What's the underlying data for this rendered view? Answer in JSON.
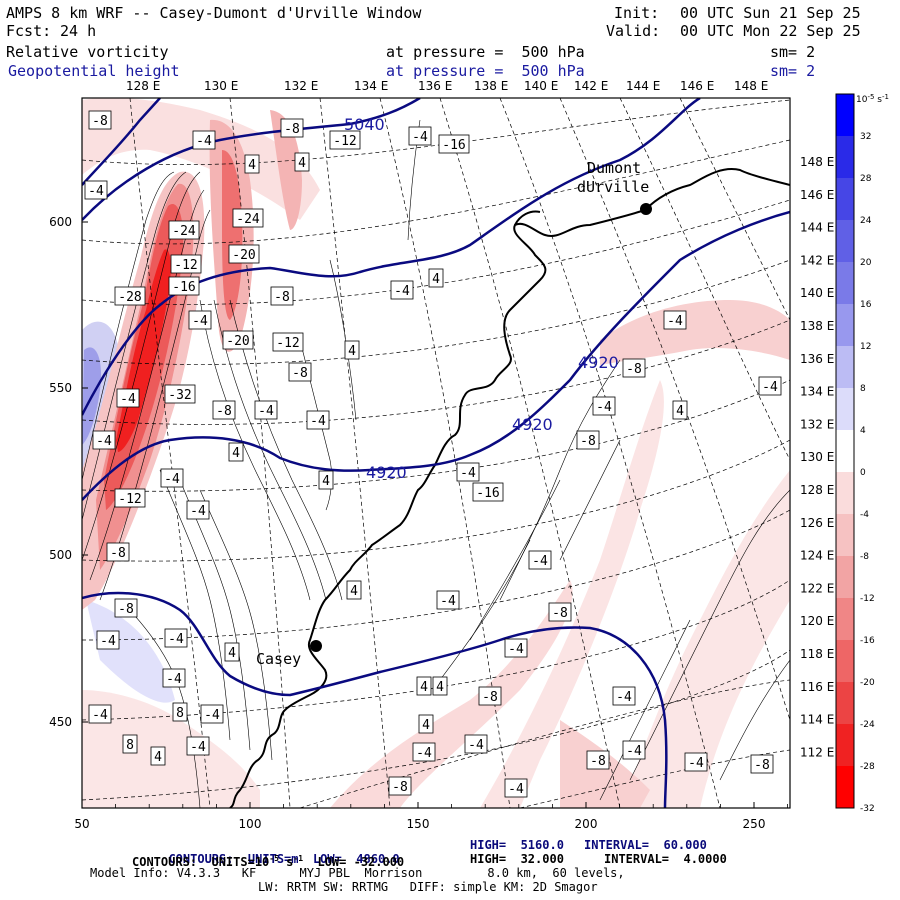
{
  "header": {
    "model_line": "AMPS 8 km WRF -- Casey-Dumont d'Urville Window",
    "fcst_label": "Fcst:",
    "fcst_value": "24 h",
    "init_label": "Init:",
    "init_value": "00 UTC Sun 21 Sep 25",
    "valid_label": "Valid:",
    "valid_value": "00 UTC Mon 22 Sep 25",
    "field1_name": "Relative vorticity",
    "field1_level": "at pressure =  500 hPa",
    "field1_sm": "sm= 2",
    "field2_name": "Geopotential height",
    "field2_level": "at pressure =  500 hPa",
    "field2_sm": "sm= 2"
  },
  "longitude_labels": [
    "128 E",
    "130 E",
    "132 E",
    "134 E",
    "136 E",
    "138 E",
    "140 E",
    "142 E",
    "144 E",
    "146 E",
    "148 E"
  ],
  "latitude_labels": [
    "148 E",
    "146 E",
    "144 E",
    "142 E",
    "140 E",
    "138 E",
    "136 E",
    "134 E",
    "132 E",
    "130 E",
    "128 E",
    "126 E",
    "124 E",
    "122 E",
    "120 E",
    "118 E",
    "116 E",
    "114 E",
    "112 E"
  ],
  "x_axis_ticks": [
    "50",
    "100",
    "150",
    "200",
    "250"
  ],
  "y_axis_ticks": [
    "600",
    "550",
    "500",
    "450"
  ],
  "colorbar": {
    "unit": "10^-5 s^-1",
    "labels": [
      "32",
      "28",
      "24",
      "20",
      "16",
      "12",
      "8",
      "4",
      "0",
      "-4",
      "-8",
      "-12",
      "-16",
      "-20",
      "-24",
      "-28",
      "-32"
    ],
    "colors": [
      "#0000ff",
      "#2a2ae8",
      "#4646e6",
      "#6060e6",
      "#7a7ae8",
      "#9898ee",
      "#bcbcf4",
      "#dcdcfa",
      "#ffffff",
      "#fadcdc",
      "#f6c2c2",
      "#f2a4a4",
      "#f08686",
      "#ee6666",
      "#ec4444",
      "#f02222",
      "#ff0000"
    ]
  },
  "places": [
    {
      "name": "Dumont",
      "name2": "dUrville"
    },
    {
      "name": "Casey"
    }
  ],
  "height_contour_labels": [
    "5040",
    "4920",
    "4920",
    "4920"
  ],
  "vorticity_labels": [
    "-8",
    "-4",
    "-8",
    "-4",
    "-16",
    "-12",
    "4",
    "4",
    "-4",
    "-24",
    "-24",
    "-20",
    "-12",
    "-28",
    "-16",
    "-8",
    "-4",
    "4",
    "-4",
    "-20",
    "-12",
    "4",
    "-4",
    "-8",
    "-4",
    "-32",
    "-8",
    "-4",
    "-4",
    "-4",
    "-8",
    "4",
    "-4",
    "-16",
    "-4",
    "-12",
    "-8",
    "-8",
    "-4",
    "4",
    "-4",
    "-4",
    "-8",
    "8",
    "-4",
    "8",
    "-4",
    "4",
    "-4",
    "-4",
    "-8",
    "4",
    "-8",
    "-4",
    "-4",
    "-4",
    "-4",
    "4",
    "-8",
    "-4",
    "4",
    "4",
    "-4",
    "-4",
    "-8",
    "-4",
    "-4",
    "4",
    "-8",
    "4",
    "-4",
    "-4"
  ],
  "footer": {
    "line1_a": "CONTOURS:  UNITS=m  LOW=  4860.0",
    "line1_b": "HIGH=  5160.0",
    "line1_c": "INTERVAL=  60.000",
    "line2_a": "CONTOURS:  UNITS=10",
    "line2_exp": "-5",
    "line2_b": " s",
    "line2_exp2": "-1",
    "line2_c": "  LOW= -32.000",
    "line2_d": "HIGH=  32.000",
    "line2_e": "INTERVAL=  4.0000",
    "line3": "Model Info: V4.3.3   KF      MYJ PBL  Morrison         8.0 km,  60 levels,",
    "line4": "LW: RRTM SW: RRTMG   DIFF: simple KM: 2D Smagor"
  }
}
